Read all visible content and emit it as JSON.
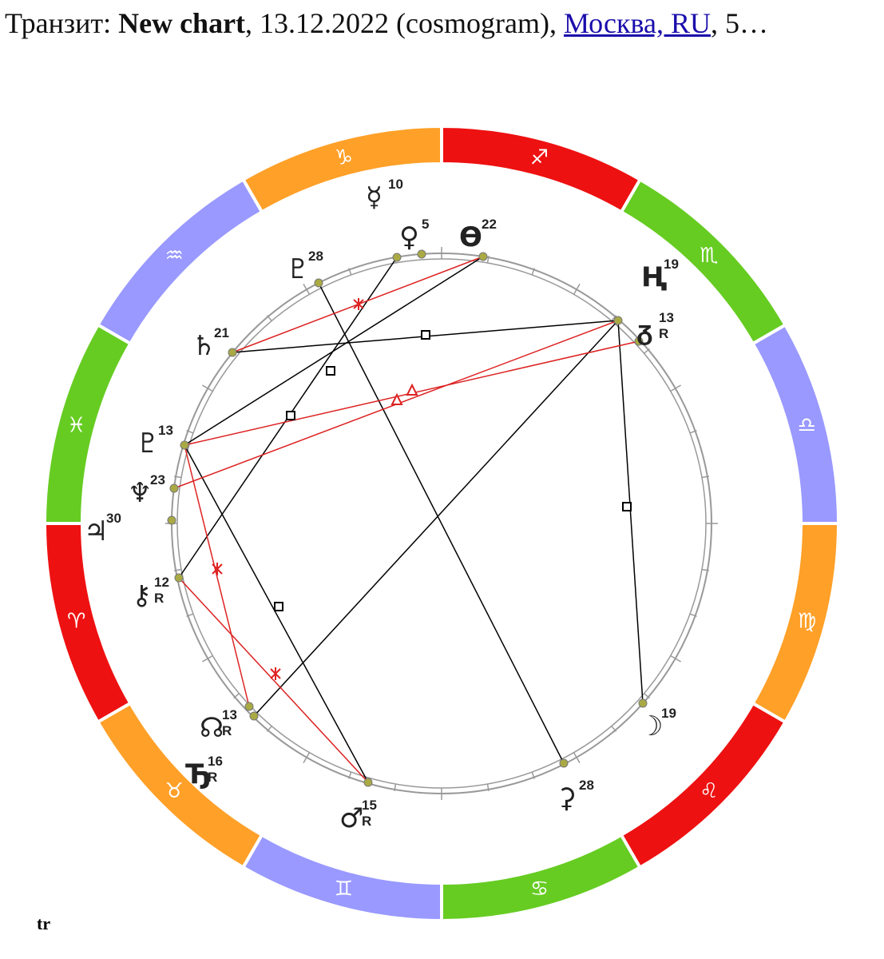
{
  "header": {
    "prefix": "Транзит:",
    "chart_name": "New chart",
    "date": ", 13.12.2022 (cosmogram),",
    "place": "Москва, RU",
    "rest": ", 5…"
  },
  "zodiac": [
    "♎",
    "♏",
    "♐",
    "♑",
    "♒",
    "♓",
    "♈",
    "♉",
    "♊",
    "♋",
    "♌",
    "♍"
  ],
  "planets": [
    {
      "glyph": "☿",
      "degree": 10
    },
    {
      "glyph": "♀",
      "degree": 5
    },
    {
      "glyph": "ϴ",
      "degree": 22
    },
    {
      "glyph": "♇",
      "degree": 28
    },
    {
      "glyph": "Ң",
      "degree": 19
    },
    {
      "glyph": "ᵹ",
      "degree": 13,
      "retro": "R"
    },
    {
      "glyph": "♄",
      "degree": 21
    },
    {
      "glyph": "♇",
      "degree": 13
    },
    {
      "glyph": "♆",
      "degree": 23
    },
    {
      "glyph": "♃",
      "degree": 30
    },
    {
      "glyph": "⚷",
      "degree": 12,
      "retro": "R"
    },
    {
      "glyph": "☊",
      "degree": 13,
      "retro": "R"
    },
    {
      "glyph": "Ꚋ",
      "degree": 16,
      "retro": "R"
    },
    {
      "glyph": "♂",
      "degree": 15,
      "retro": "R"
    },
    {
      "glyph": "⚳",
      "degree": 28
    },
    {
      "glyph": "☽",
      "degree": 19
    }
  ],
  "footer": "tr"
}
